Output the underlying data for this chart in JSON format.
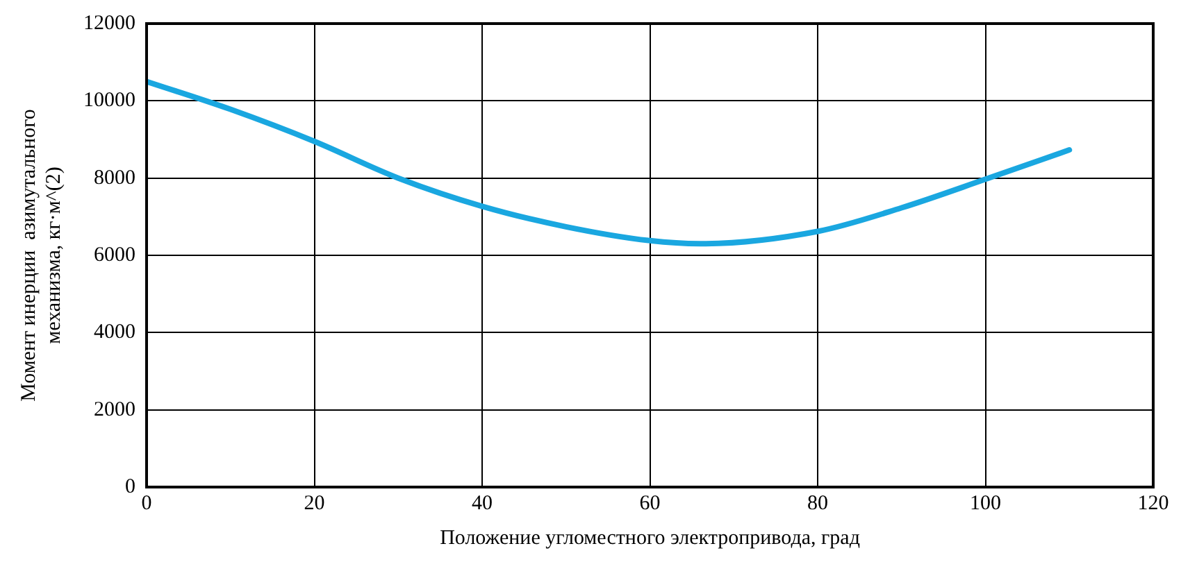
{
  "chart_data": {
    "type": "line",
    "xlabel": "Положение угломестного электропривода, град",
    "ylabel": "Момент инерции  азимутального\nмеханизма, кг·м^(2)",
    "x": [
      0,
      10,
      20,
      30,
      40,
      50,
      60,
      66,
      80,
      90,
      100,
      110
    ],
    "series": [
      {
        "color": "#1aa7e0",
        "values": [
          10500,
          9780,
          8950,
          8000,
          7270,
          6740,
          6380,
          6300,
          6620,
          7230,
          7970,
          8730
        ]
      }
    ],
    "xlim": [
      0,
      120
    ],
    "xticks": [
      0,
      20,
      40,
      60,
      80,
      100,
      120
    ],
    "ylim": [
      0,
      12000
    ],
    "yticks": [
      0,
      2000,
      4000,
      6000,
      8000,
      10000,
      12000
    ],
    "grid": true,
    "legend": false,
    "marker": "none",
    "line_style": "solid"
  }
}
